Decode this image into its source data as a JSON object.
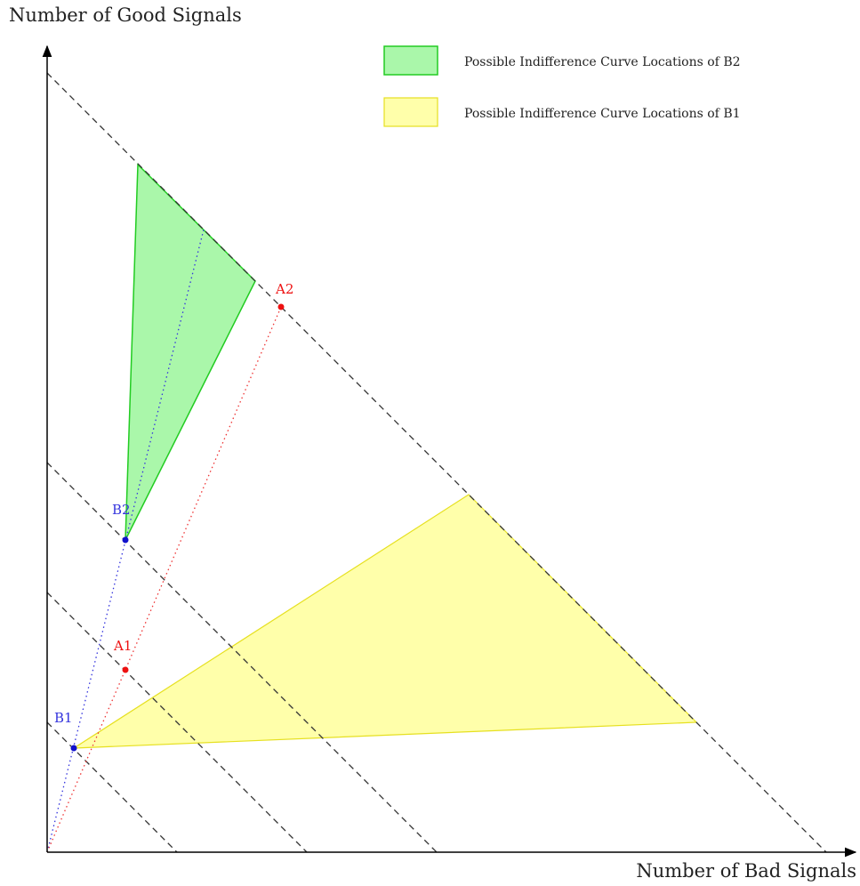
{
  "axes": {
    "y_label": "Number of Good Signals",
    "x_label": "Number of Bad Signals"
  },
  "legend": {
    "items": [
      {
        "label": "Possible Indifference Curve Locations of B2"
      },
      {
        "label": "Possible Indifference Curve Locations of B1"
      }
    ]
  },
  "points": [
    {
      "label": "A2"
    },
    {
      "label": "B2"
    },
    {
      "label": "A1"
    },
    {
      "label": "B1"
    }
  ]
}
